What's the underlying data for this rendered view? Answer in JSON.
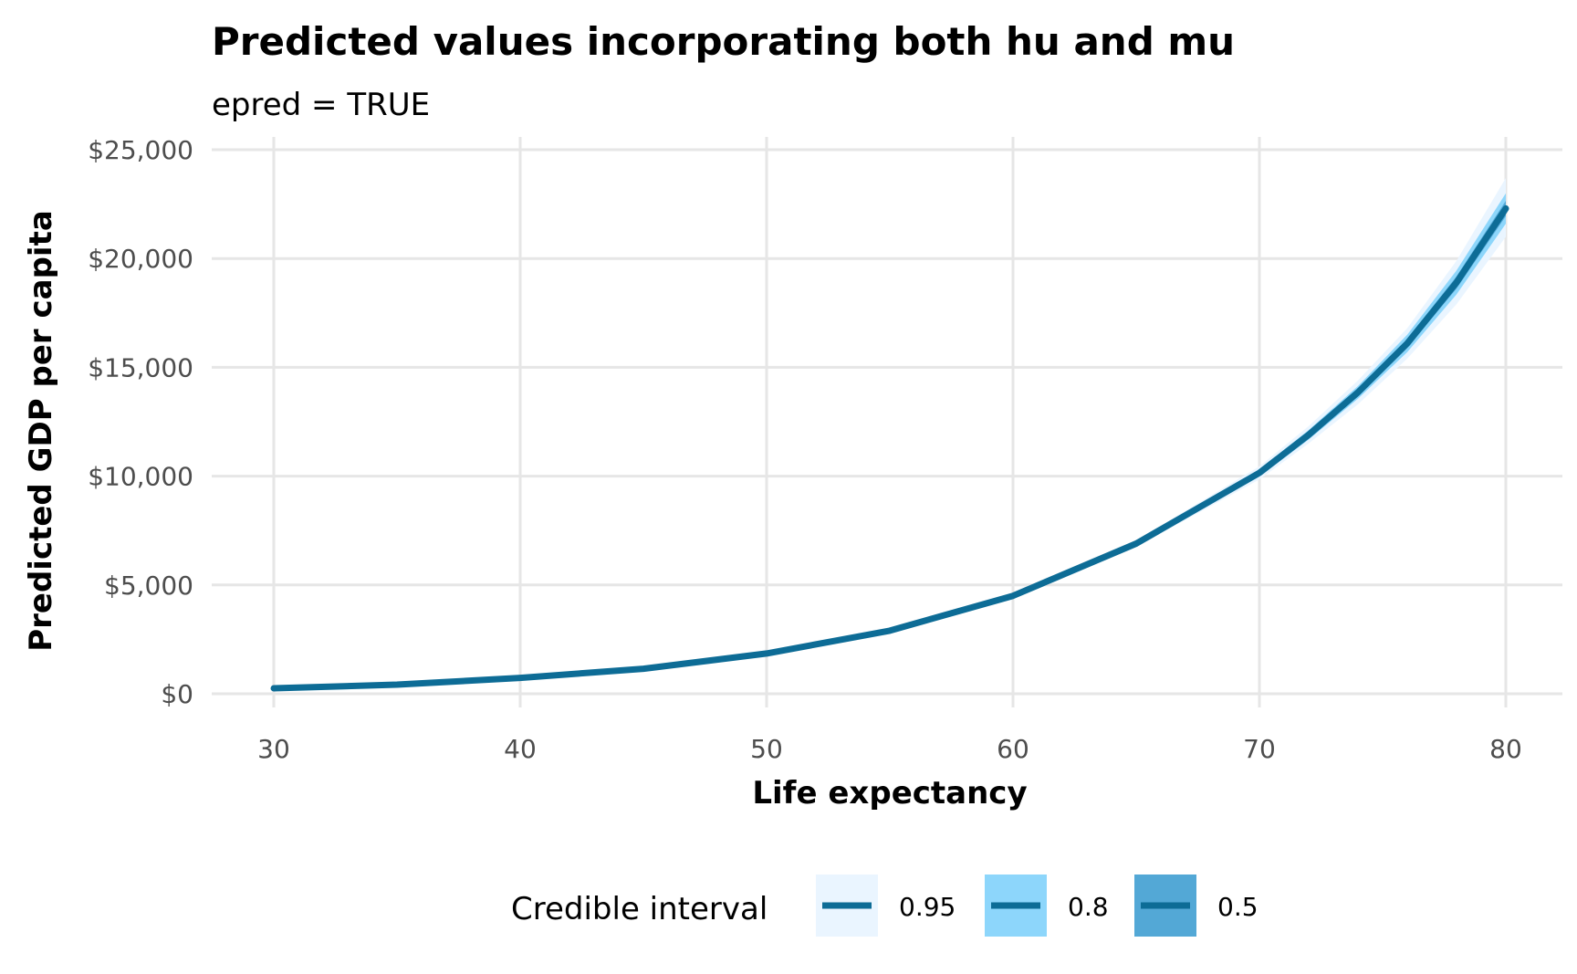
{
  "chart_data": {
    "type": "line",
    "title": "Predicted values incorporating both hu and mu",
    "subtitle": "epred = TRUE",
    "xlabel": "Life expectancy",
    "ylabel": "Predicted GDP per capita",
    "xlim": [
      30,
      80
    ],
    "ylim": [
      0,
      25000
    ],
    "x_ticks": [
      30,
      40,
      50,
      60,
      70,
      80
    ],
    "x_tick_labels": [
      "30",
      "40",
      "50",
      "60",
      "70",
      "80"
    ],
    "y_ticks": [
      0,
      5000,
      10000,
      15000,
      20000,
      25000
    ],
    "y_tick_labels": [
      "$0",
      "$5,000",
      "$10,000",
      "$15,000",
      "$20,000",
      "$25,000"
    ],
    "grid": true,
    "legend": {
      "title": "Credible interval",
      "placement": "bottom",
      "entries": [
        {
          "label": "0.95",
          "color": "#eaf5ff"
        },
        {
          "label": "0.8",
          "color": "#8dd6fb"
        },
        {
          "label": "0.5",
          "color": "#53a8d6"
        }
      ]
    },
    "line_color": "#0d6c96",
    "x": [
      30,
      35,
      40,
      45,
      50,
      55,
      60,
      65,
      70,
      72,
      74,
      76,
      78,
      80
    ],
    "y": [
      250,
      420,
      730,
      1150,
      1850,
      2900,
      4500,
      6900,
      10150,
      11900,
      13850,
      16100,
      18900,
      22300
    ],
    "series": [
      {
        "name": "0.95",
        "lower": [
          245,
          410,
          715,
          1120,
          1810,
          2840,
          4400,
          6750,
          9850,
          11500,
          13300,
          15400,
          17900,
          21000
        ],
        "upper": [
          255,
          430,
          745,
          1180,
          1890,
          2960,
          4600,
          7050,
          10450,
          12300,
          14400,
          16800,
          19900,
          23700
        ]
      },
      {
        "name": "0.8",
        "lower": [
          247,
          414,
          720,
          1130,
          1825,
          2860,
          4440,
          6810,
          9980,
          11680,
          13560,
          15700,
          18350,
          21600
        ],
        "upper": [
          253,
          426,
          740,
          1170,
          1875,
          2940,
          4560,
          6990,
          10320,
          12120,
          14140,
          16500,
          19450,
          23000
        ]
      },
      {
        "name": "0.5",
        "lower": [
          249,
          417,
          725,
          1140,
          1838,
          2880,
          4470,
          6860,
          10060,
          11790,
          13710,
          15900,
          18620,
          21950
        ],
        "upper": [
          251,
          423,
          735,
          1160,
          1862,
          2920,
          4530,
          6940,
          10240,
          12010,
          13990,
          16300,
          19180,
          22650
        ]
      }
    ]
  }
}
